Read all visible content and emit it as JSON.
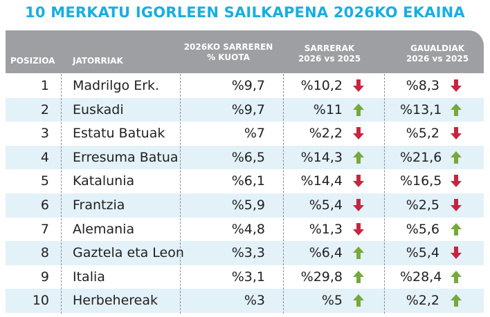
{
  "title": "10 MERKATU IGORLEEN SAILKAPENA 2026KO EKAINA",
  "headers": {
    "position": "POSIZIOA",
    "source": "JATORRIAK",
    "share_line1": "2026KO SARREREN",
    "share_line2": "% KUOTA",
    "arrivals_line1": "SARRERAK",
    "arrivals_line2": "2026 vs 2025",
    "overnight_line1": "GAUALDIAK",
    "overnight_line2": "2026 vs 2025"
  },
  "colors": {
    "title": "#19aee0",
    "header_bg": "#9d9fa2",
    "alt_row": "#e3f1f8",
    "up": "#76a83b",
    "down": "#c8243f"
  },
  "rows": [
    {
      "pos": "1",
      "source": "Madrilgo Erk.",
      "share": "%9,7",
      "arrivals": "%10,2",
      "arrivals_dir": "down",
      "overnight": "%8,3",
      "overnight_dir": "down"
    },
    {
      "pos": "2",
      "source": "Euskadi",
      "share": "%9,7",
      "arrivals": "%11",
      "arrivals_dir": "up",
      "overnight": "%13,1",
      "overnight_dir": "up"
    },
    {
      "pos": "3",
      "source": "Estatu Batuak",
      "share": "%7",
      "arrivals": "%2,2",
      "arrivals_dir": "down",
      "overnight": "%5,2",
      "overnight_dir": "down"
    },
    {
      "pos": "4",
      "source": "Erresuma Batua",
      "share": "%6,5",
      "arrivals": "%14,3",
      "arrivals_dir": "up",
      "overnight": "%21,6",
      "overnight_dir": "up"
    },
    {
      "pos": "5",
      "source": "Katalunia",
      "share": "%6,1",
      "arrivals": "%14,4",
      "arrivals_dir": "down",
      "overnight": "%16,5",
      "overnight_dir": "down"
    },
    {
      "pos": "6",
      "source": "Frantzia",
      "share": "%5,9",
      "arrivals": "%5,4",
      "arrivals_dir": "down",
      "overnight": "%2,5",
      "overnight_dir": "down"
    },
    {
      "pos": "7",
      "source": "Alemania",
      "share": "%4,8",
      "arrivals": "%1,3",
      "arrivals_dir": "down",
      "overnight": "%5,6",
      "overnight_dir": "up"
    },
    {
      "pos": "8",
      "source": "Gaztela eta Leon",
      "share": "%3,3",
      "arrivals": "%6,4",
      "arrivals_dir": "up",
      "overnight": "%5,4",
      "overnight_dir": "down"
    },
    {
      "pos": "9",
      "source": "Italia",
      "share": "%3,1",
      "arrivals": "%29,8",
      "arrivals_dir": "up",
      "overnight": "%28,4",
      "overnight_dir": "up"
    },
    {
      "pos": "10",
      "source": "Herbehereak",
      "share": "%3",
      "arrivals": "%5",
      "arrivals_dir": "up",
      "overnight": "%2,2",
      "overnight_dir": "up"
    }
  ]
}
